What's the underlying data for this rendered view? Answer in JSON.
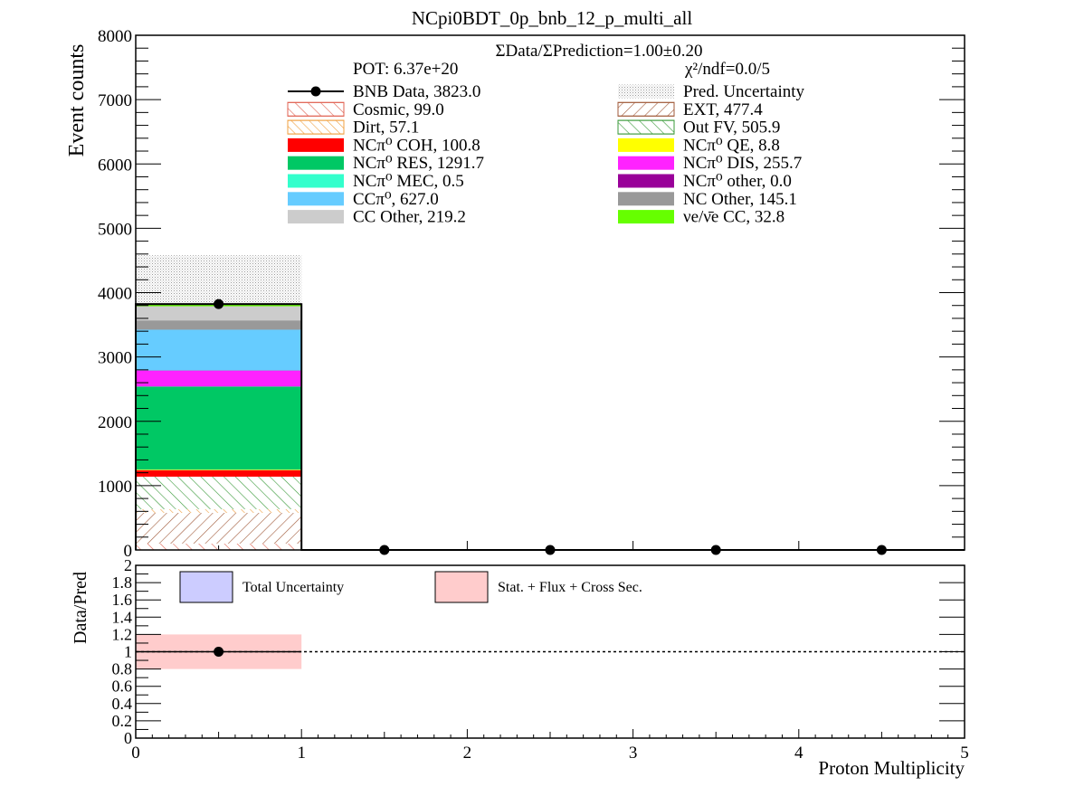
{
  "chart_data": [
    {
      "type": "bar",
      "stacked": true,
      "title": "NCpi0BDT_0p_bnb_12_p_multi_all",
      "xlabel": "Proton Multiplicity",
      "ylabel": "Event counts",
      "xlim": [
        0,
        5
      ],
      "ylim": [
        0,
        8000
      ],
      "xticks": [
        "0",
        "1",
        "2",
        "3",
        "4",
        "5"
      ],
      "yticks": [
        "0",
        "1000",
        "2000",
        "3000",
        "4000",
        "5000",
        "6000",
        "7000",
        "8000"
      ],
      "bins": [
        [
          0,
          1
        ],
        [
          1,
          2
        ],
        [
          2,
          3
        ],
        [
          3,
          4
        ],
        [
          4,
          5
        ]
      ],
      "annotations": {
        "ratio_text": "ΣData/ΣPrediction=1.00±0.20",
        "pot_text": "POT: 6.37e+20",
        "chi2_text": "χ²/ndf=0.0/5"
      },
      "legend": [
        {
          "key": "data",
          "label": "BNB Data, 3823.0"
        },
        {
          "key": "unc",
          "label": "Pred. Uncertainty"
        },
        {
          "key": "cosmic",
          "label": "Cosmic, 99.0"
        },
        {
          "key": "ext",
          "label": "EXT, 477.4"
        },
        {
          "key": "dirt",
          "label": "Dirt, 57.1"
        },
        {
          "key": "outfv",
          "label": "Out FV, 505.9"
        },
        {
          "key": "coh",
          "label": "NCπ⁰ COH,  100.8"
        },
        {
          "key": "qe",
          "label": "NCπ⁰ QE,  8.8"
        },
        {
          "key": "res",
          "label": "NCπ⁰ RES,  1291.7"
        },
        {
          "key": "dis",
          "label": "NCπ⁰ DIS,  255.7"
        },
        {
          "key": "mec",
          "label": "NCπ⁰ MEC,  0.5"
        },
        {
          "key": "other",
          "label": "NCπ⁰ other,  0.0"
        },
        {
          "key": "ccpi0",
          "label": "CCπ⁰, 627.0"
        },
        {
          "key": "ncother",
          "label": "NC Other, 145.1"
        },
        {
          "key": "ccother",
          "label": "CC Other, 219.2"
        },
        {
          "key": "nue",
          "label": "νe/ν̄e CC, 32.8"
        }
      ],
      "stack_order": [
        "cosmic",
        "ext",
        "dirt",
        "outfv",
        "coh",
        "qe",
        "res",
        "dis",
        "mec",
        "other",
        "ccpi0",
        "ncother",
        "ccother",
        "nue"
      ],
      "series": [
        {
          "key": "cosmic",
          "values": [
            99.0,
            0,
            0,
            0,
            0
          ]
        },
        {
          "key": "ext",
          "values": [
            477.4,
            0,
            0,
            0,
            0
          ]
        },
        {
          "key": "dirt",
          "values": [
            57.1,
            0,
            0,
            0,
            0
          ]
        },
        {
          "key": "outfv",
          "values": [
            505.9,
            0,
            0,
            0,
            0
          ]
        },
        {
          "key": "coh",
          "values": [
            100.8,
            0,
            0,
            0,
            0
          ]
        },
        {
          "key": "qe",
          "values": [
            8.8,
            0,
            0,
            0,
            0
          ]
        },
        {
          "key": "res",
          "values": [
            1291.7,
            0,
            0,
            0,
            0
          ]
        },
        {
          "key": "dis",
          "values": [
            255.7,
            0,
            0,
            0,
            0
          ]
        },
        {
          "key": "mec",
          "values": [
            0.5,
            0,
            0,
            0,
            0
          ]
        },
        {
          "key": "other",
          "values": [
            0.0,
            0,
            0,
            0,
            0
          ]
        },
        {
          "key": "ccpi0",
          "values": [
            627.0,
            0,
            0,
            0,
            0
          ]
        },
        {
          "key": "ncother",
          "values": [
            145.1,
            0,
            0,
            0,
            0
          ]
        },
        {
          "key": "ccother",
          "values": [
            219.2,
            0,
            0,
            0,
            0
          ]
        },
        {
          "key": "nue",
          "values": [
            32.8,
            0,
            0,
            0,
            0
          ]
        }
      ],
      "data_points": [
        {
          "x": 0.5,
          "y": 3823.0
        },
        {
          "x": 1.5,
          "y": 0
        },
        {
          "x": 2.5,
          "y": 0
        },
        {
          "x": 3.5,
          "y": 0
        },
        {
          "x": 4.5,
          "y": 0
        }
      ],
      "uncertainty_band": [
        {
          "x0": 0,
          "x1": 1,
          "ylow": 3760,
          "yhigh": 4580
        }
      ],
      "colors": {
        "cosmic": "#e06050",
        "ext": "#a05a3a",
        "dirt": "#f0a040",
        "outfv": "#3a9a3a",
        "coh": "#ff0000",
        "qe": "#ffff00",
        "res": "#00c864",
        "dis": "#ff22ff",
        "mec": "#33ffcc",
        "other": "#990099",
        "ccpi0": "#66ccff",
        "ncother": "#999999",
        "ccother": "#cccccc",
        "nue": "#66ff00"
      }
    },
    {
      "type": "scatter",
      "xlabel": "Proton Multiplicity",
      "ylabel": "Data/Pred",
      "xlim": [
        0,
        5
      ],
      "ylim": [
        0,
        2
      ],
      "yticks": [
        "0",
        "0.2",
        "0.4",
        "0.6",
        "0.8",
        "1",
        "1.2",
        "1.4",
        "1.6",
        "1.8",
        "2"
      ],
      "reference_line": 1,
      "legend": [
        {
          "key": "total",
          "label": "Total Uncertainty",
          "color": "#ccccff"
        },
        {
          "key": "stat",
          "label": "Stat. + Flux + Cross Sec.",
          "color": "#ffcccc"
        }
      ],
      "points": [
        {
          "x": 0.5,
          "y": 1.0,
          "xerr": 0.5
        }
      ],
      "bands": [
        {
          "x0": 0,
          "x1": 1,
          "ylow": 0.8,
          "yhigh": 1.2
        }
      ]
    }
  ]
}
